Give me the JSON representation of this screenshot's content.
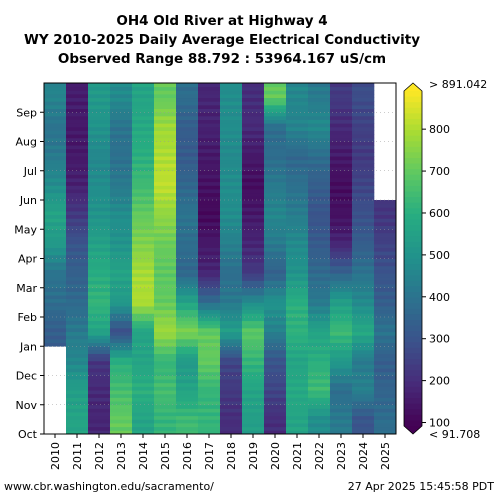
{
  "chart_data": {
    "type": "heatmap",
    "title_lines": [
      "OH4 Old River at Highway 4",
      "WY 2010-2025 Daily Average Electrical Conductivity",
      "Observed Range 88.792 : 53964.167 uS/cm"
    ],
    "x_categories": [
      "2010",
      "2011",
      "2012",
      "2013",
      "2014",
      "2015",
      "2016",
      "2017",
      "2018",
      "2019",
      "2020",
      "2021",
      "2022",
      "2023",
      "2024",
      "2025"
    ],
    "y_categories": [
      "Oct",
      "Nov",
      "Dec",
      "Jan",
      "Feb",
      "Mar",
      "Apr",
      "May",
      "Jun",
      "Jul",
      "Aug",
      "Sep"
    ],
    "colorbar": {
      "colormap": "viridis",
      "range": [
        91.708,
        891.042
      ],
      "ticks": [
        "100",
        "200",
        "300",
        "400",
        "500",
        "600",
        "700",
        "800"
      ],
      "max_label": "> 891.042",
      "min_label": "< 91.708"
    },
    "monthly_values": {
      "2010": [
        null,
        null,
        null,
        330,
        380,
        400,
        520,
        560,
        480,
        420,
        400,
        450
      ],
      "2011": [
        560,
        540,
        460,
        420,
        370,
        340,
        300,
        230,
        170,
        150,
        150,
        160
      ],
      "2012": [
        180,
        190,
        220,
        560,
        620,
        590,
        550,
        500,
        480,
        460,
        500,
        520
      ],
      "2013": [
        700,
        650,
        600,
        280,
        520,
        560,
        500,
        480,
        420,
        390,
        400,
        470
      ],
      "2014": [
        560,
        600,
        560,
        560,
        800,
        790,
        740,
        700,
        640,
        600,
        580,
        560
      ],
      "2015": [
        620,
        650,
        620,
        780,
        700,
        690,
        710,
        760,
        820,
        800,
        780,
        700
      ],
      "2016": [
        640,
        560,
        520,
        740,
        560,
        360,
        380,
        400,
        360,
        320,
        330,
        380
      ],
      "2017": [
        620,
        620,
        700,
        700,
        380,
        180,
        150,
        110,
        130,
        150,
        170,
        180
      ],
      "2018": [
        200,
        230,
        260,
        540,
        420,
        380,
        440,
        480,
        480,
        470,
        480,
        480
      ],
      "2019": [
        540,
        560,
        620,
        690,
        480,
        230,
        180,
        150,
        120,
        150,
        190,
        200
      ],
      "2020": [
        200,
        260,
        300,
        440,
        500,
        340,
        420,
        460,
        420,
        380,
        380,
        700
      ],
      "2021": [
        560,
        580,
        560,
        610,
        600,
        500,
        470,
        430,
        390,
        360,
        450,
        460
      ],
      "2022": [
        480,
        640,
        600,
        560,
        420,
        370,
        320,
        300,
        330,
        380,
        470,
        420
      ],
      "2023": [
        420,
        380,
        520,
        640,
        540,
        350,
        180,
        130,
        120,
        150,
        190,
        230
      ],
      "2024": [
        300,
        440,
        420,
        580,
        470,
        400,
        330,
        290,
        260,
        230,
        250,
        280
      ],
      "2025": [
        380,
        350,
        330,
        400,
        330,
        300,
        250,
        220,
        null,
        null,
        null,
        null
      ]
    }
  },
  "footer": {
    "left": "www.cbr.washington.edu/sacramento/",
    "right": "27 Apr 2025 15:45:58 PDT"
  }
}
